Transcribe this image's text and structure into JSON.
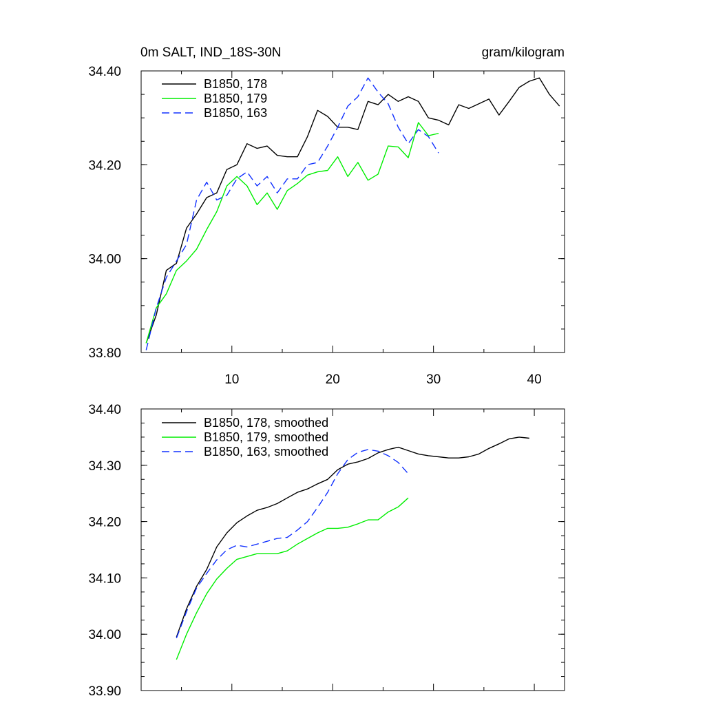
{
  "chart_data": [
    {
      "type": "line",
      "title": "0m SALT, IND_18S-30N",
      "units": "gram/kilogram",
      "xlim": [
        1,
        43
      ],
      "ylim": [
        33.8,
        34.4
      ],
      "xticks": [
        10,
        20,
        30,
        40
      ],
      "yticks": [
        33.8,
        34.0,
        34.2,
        34.4
      ],
      "ytick_labels": [
        "33.80",
        "34.00",
        "34.20",
        "34.40"
      ],
      "xtick_labels": [
        "10",
        "20",
        "30",
        "40"
      ],
      "legend": [
        "B1850, 178",
        "B1850, 179",
        "B1850, 163"
      ],
      "series": [
        {
          "name": "B1850, 178",
          "color": "#000000",
          "dash": "solid",
          "x": [
            1.5,
            2.5,
            3.5,
            4.5,
            5.5,
            6.5,
            7.5,
            8.5,
            9.5,
            10.5,
            11.5,
            12.5,
            13.5,
            14.5,
            15.5,
            16.5,
            17.5,
            18.5,
            19.5,
            20.5,
            21.5,
            22.5,
            23.5,
            24.5,
            25.5,
            26.5,
            27.5,
            28.5,
            29.5,
            30.5,
            31.5,
            32.5,
            33.5,
            34.5,
            35.5,
            36.5,
            37.5,
            38.5,
            39.5,
            40.5,
            41.5,
            42.5
          ],
          "values": [
            33.82,
            33.88,
            33.975,
            33.99,
            34.065,
            34.095,
            34.13,
            34.14,
            34.19,
            34.2,
            34.245,
            34.235,
            34.24,
            34.22,
            34.217,
            34.217,
            34.26,
            34.316,
            34.303,
            34.28,
            34.28,
            34.275,
            34.335,
            34.328,
            34.35,
            34.335,
            34.345,
            34.335,
            34.3,
            34.295,
            34.285,
            34.328,
            34.32,
            34.33,
            34.34,
            34.306,
            34.335,
            34.365,
            34.378,
            34.385,
            34.35,
            34.325
          ]
        },
        {
          "name": "B1850, 179",
          "color": "#00ee00",
          "dash": "solid",
          "x": [
            1.5,
            2.5,
            3.5,
            4.5,
            5.5,
            6.5,
            7.5,
            8.5,
            9.5,
            10.5,
            11.5,
            12.5,
            13.5,
            14.5,
            15.5,
            16.5,
            17.5,
            18.5,
            19.5,
            20.5,
            21.5,
            22.5,
            23.5,
            24.5,
            25.5,
            26.5,
            27.5,
            28.5,
            29.5,
            30.5
          ],
          "values": [
            33.82,
            33.895,
            33.925,
            33.975,
            33.995,
            34.02,
            34.062,
            34.1,
            34.155,
            34.175,
            34.155,
            34.115,
            34.14,
            34.105,
            34.145,
            34.16,
            34.178,
            34.185,
            34.188,
            34.217,
            34.175,
            34.205,
            34.167,
            34.18,
            34.24,
            34.238,
            34.215,
            34.29,
            34.262,
            34.267
          ]
        },
        {
          "name": "B1850, 163",
          "color": "#1030ff",
          "dash": "dashed",
          "x": [
            1.5,
            2.5,
            3.5,
            4.5,
            5.5,
            6.5,
            7.5,
            8.5,
            9.5,
            10.5,
            11.5,
            12.5,
            13.5,
            14.5,
            15.5,
            16.5,
            17.5,
            18.5,
            19.5,
            20.5,
            21.5,
            22.5,
            23.5,
            24.5,
            25.5,
            26.5,
            27.5,
            28.5,
            29.5,
            30.5
          ],
          "values": [
            33.805,
            33.895,
            33.96,
            33.995,
            34.03,
            34.125,
            34.163,
            34.125,
            34.135,
            34.17,
            34.185,
            34.155,
            34.175,
            34.14,
            34.17,
            34.17,
            34.2,
            34.205,
            34.24,
            34.28,
            34.325,
            34.345,
            34.385,
            34.355,
            34.33,
            34.28,
            34.245,
            34.275,
            34.26,
            34.225
          ]
        }
      ]
    },
    {
      "type": "line",
      "title": "",
      "xlim": [
        1,
        43
      ],
      "ylim": [
        33.9,
        34.4
      ],
      "xticks": [
        10,
        20,
        30,
        40
      ],
      "yticks": [
        33.9,
        34.0,
        34.1,
        34.2,
        34.3,
        34.4
      ],
      "ytick_labels": [
        "33.90",
        "34.00",
        "34.10",
        "34.20",
        "34.30",
        "34.40"
      ],
      "legend": [
        "B1850, 178, smoothed",
        "B1850, 179, smoothed",
        "B1850, 163, smoothed"
      ],
      "series": [
        {
          "name": "B1850, 178, smoothed",
          "color": "#000000",
          "dash": "solid",
          "x": [
            4.5,
            5.5,
            6.5,
            7.5,
            8.5,
            9.5,
            10.5,
            11.5,
            12.5,
            13.5,
            14.5,
            15.5,
            16.5,
            17.5,
            18.5,
            19.5,
            20.5,
            21.5,
            22.5,
            23.5,
            24.5,
            25.5,
            26.5,
            27.5,
            28.5,
            29.5,
            30.5,
            31.5,
            32.5,
            33.5,
            34.5,
            35.5,
            36.5,
            37.5,
            38.5,
            39.5
          ],
          "values": [
            33.995,
            34.045,
            34.085,
            34.115,
            34.155,
            34.18,
            34.198,
            34.21,
            34.22,
            34.225,
            34.232,
            34.242,
            34.252,
            34.258,
            34.267,
            34.275,
            34.292,
            34.302,
            34.306,
            34.312,
            34.322,
            34.328,
            34.332,
            34.326,
            34.32,
            34.317,
            34.315,
            34.313,
            34.313,
            34.315,
            34.32,
            34.33,
            34.338,
            34.347,
            34.35,
            34.348
          ]
        },
        {
          "name": "B1850, 179, smoothed",
          "color": "#00ee00",
          "dash": "solid",
          "x": [
            4.5,
            5.5,
            6.5,
            7.5,
            8.5,
            9.5,
            10.5,
            11.5,
            12.5,
            13.5,
            14.5,
            15.5,
            16.5,
            17.5,
            18.5,
            19.5,
            20.5,
            21.5,
            22.5,
            23.5,
            24.5,
            25.5,
            26.5,
            27.5
          ],
          "values": [
            33.955,
            34.0,
            34.038,
            34.072,
            34.098,
            34.117,
            34.133,
            34.138,
            34.143,
            34.143,
            34.143,
            34.148,
            34.16,
            34.17,
            34.18,
            34.188,
            34.188,
            34.19,
            34.196,
            34.203,
            34.203,
            34.217,
            34.226,
            34.242
          ]
        },
        {
          "name": "B1850, 163, smoothed",
          "color": "#1030ff",
          "dash": "dashed",
          "x": [
            4.5,
            5.5,
            6.5,
            7.5,
            8.5,
            9.5,
            10.5,
            11.5,
            12.5,
            13.5,
            14.5,
            15.5,
            16.5,
            17.5,
            18.5,
            19.5,
            20.5,
            21.5,
            22.5,
            23.5,
            24.5,
            25.5,
            26.5,
            27.5
          ],
          "values": [
            33.993,
            34.04,
            34.082,
            34.108,
            34.132,
            34.15,
            34.158,
            34.155,
            34.16,
            34.165,
            34.17,
            34.172,
            34.185,
            34.2,
            34.225,
            34.252,
            34.285,
            34.31,
            34.323,
            34.328,
            34.325,
            34.317,
            34.305,
            34.285
          ]
        }
      ]
    }
  ]
}
